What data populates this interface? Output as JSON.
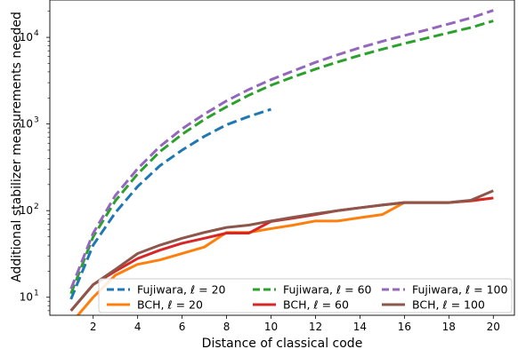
{
  "chart_data": {
    "type": "line",
    "title": "",
    "xlabel": "Distance of classical code",
    "ylabel": "Additional stabilizer measurements needed",
    "x_scale": "linear",
    "y_scale": "log",
    "xlim": [
      0.05,
      20.95
    ],
    "ylim": [
      6.2,
      27000
    ],
    "x_ticks": [
      2,
      4,
      6,
      8,
      10,
      12,
      14,
      16,
      18,
      20
    ],
    "x_tick_labels": [
      "2",
      "4",
      "6",
      "8",
      "10",
      "12",
      "14",
      "16",
      "18",
      "20"
    ],
    "y_ticks": [
      10,
      100,
      1000,
      10000
    ],
    "y_tick_labels": [
      {
        "base": "10",
        "exp": "1"
      },
      {
        "base": "10",
        "exp": "2"
      },
      {
        "base": "10",
        "exp": "3"
      },
      {
        "base": "10",
        "exp": "4"
      }
    ],
    "grid": false,
    "legend_position": "lower-right",
    "series": [
      {
        "name": "Fujiwara, ℓ = 20",
        "color": "#1f77b4",
        "dash": "dashed",
        "x": [
          1,
          2,
          3,
          4,
          5,
          6,
          7,
          8,
          9,
          10
        ],
        "y": [
          9.5,
          40,
          95,
          190,
          330,
          500,
          720,
          980,
          1220,
          1480
        ]
      },
      {
        "name": "BCH, ℓ = 20",
        "color": "#ff7f0e",
        "dash": "solid",
        "x": [
          1,
          2,
          3,
          4,
          5,
          6,
          7,
          8,
          9,
          10,
          11,
          12,
          13,
          14,
          15,
          16,
          17,
          18,
          19,
          20
        ],
        "y": [
          5,
          10,
          18,
          24,
          27,
          32,
          38,
          56,
          56,
          62,
          68,
          76,
          76,
          83,
          90,
          124,
          124,
          124,
          130,
          140
        ]
      },
      {
        "name": "Fujiwara, ℓ = 60",
        "color": "#2ca02c",
        "dash": "dashed",
        "x": [
          1,
          2,
          3,
          4,
          5,
          6,
          7,
          8,
          9,
          10,
          11,
          12,
          13,
          14,
          15,
          16,
          17,
          18,
          19,
          20
        ],
        "y": [
          11,
          50,
          130,
          265,
          480,
          760,
          1130,
          1580,
          2150,
          2800,
          3500,
          4300,
          5200,
          6200,
          7300,
          8500,
          9800,
          11300,
          13000,
          15500
        ]
      },
      {
        "name": "BCH, ℓ = 60",
        "color": "#d62728",
        "dash": "solid",
        "x": [
          1,
          2,
          3,
          4,
          5,
          6,
          7,
          8,
          9,
          10,
          11,
          12,
          13,
          14,
          15,
          16,
          17,
          18,
          19,
          20
        ],
        "y": [
          7,
          14,
          20,
          28,
          35,
          42,
          48,
          55,
          55,
          75,
          82,
          90,
          100,
          108,
          116,
          124,
          124,
          124,
          130,
          140
        ]
      },
      {
        "name": "Fujiwara, ℓ = 100",
        "color": "#9467bd",
        "dash": "dashed",
        "x": [
          1,
          2,
          3,
          4,
          5,
          6,
          7,
          8,
          9,
          10,
          11,
          12,
          13,
          14,
          15,
          16,
          17,
          18,
          19,
          20
        ],
        "y": [
          12.5,
          55,
          150,
          305,
          550,
          880,
          1300,
          1850,
          2500,
          3250,
          4100,
          5150,
          6300,
          7600,
          9000,
          10500,
          12200,
          14300,
          16800,
          20500
        ]
      },
      {
        "name": "BCH, ℓ = 100",
        "color": "#8c564b",
        "dash": "solid",
        "x": [
          1,
          2,
          3,
          4,
          5,
          6,
          7,
          8,
          9,
          10,
          11,
          12,
          13,
          14,
          15,
          16,
          17,
          18,
          19,
          20
        ],
        "y": [
          7,
          14,
          21,
          32,
          40,
          48,
          56,
          64,
          68,
          76,
          84,
          92,
          100,
          108,
          116,
          124,
          124,
          124,
          132,
          170
        ]
      }
    ]
  }
}
